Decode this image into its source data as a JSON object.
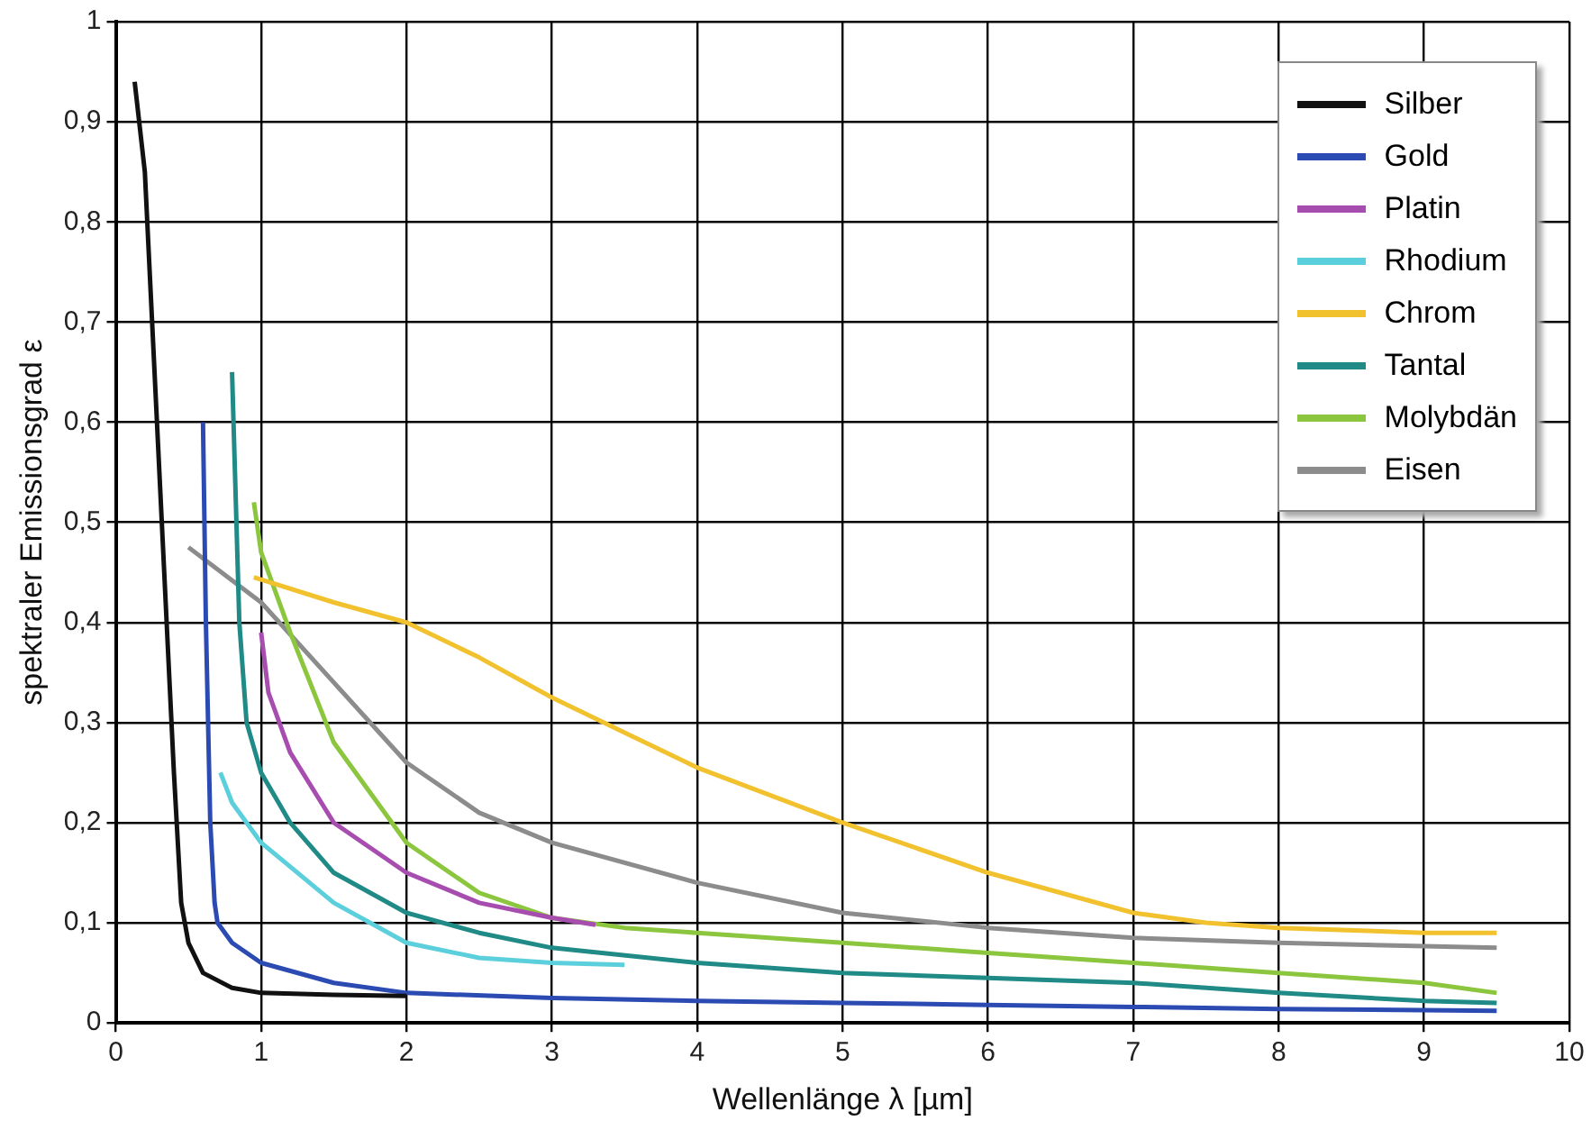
{
  "chart_data": {
    "type": "line",
    "xlabel": "Wellenlänge λ [µm]",
    "ylabel": "spektraler Emissionsgrad ε",
    "xlim": [
      0,
      10
    ],
    "ylim": [
      0,
      1
    ],
    "xticks": [
      0,
      1,
      2,
      3,
      4,
      5,
      6,
      7,
      8,
      9,
      10
    ],
    "yticks": [
      0,
      {
        "value": 0.1,
        "label": "0,1"
      },
      {
        "value": 0.2,
        "label": "0,2"
      },
      {
        "value": 0.3,
        "label": "0,3"
      },
      {
        "value": 0.4,
        "label": "0,4"
      },
      {
        "value": 0.5,
        "label": "0,5"
      },
      {
        "value": 0.6,
        "label": "0,6"
      },
      {
        "value": 0.7,
        "label": "0,7"
      },
      {
        "value": 0.8,
        "label": "0,8"
      },
      {
        "value": 0.9,
        "label": "0,9"
      },
      1
    ],
    "grid": true,
    "legend": "top right",
    "marker": "none",
    "line_style": "solid",
    "series": [
      {
        "name": "Silber",
        "color": "#111111",
        "x": [
          0.13,
          0.2,
          0.3,
          0.4,
          0.45,
          0.5,
          0.6,
          0.8,
          1,
          1.5,
          2
        ],
        "values": [
          0.94,
          0.85,
          0.55,
          0.25,
          0.12,
          0.08,
          0.05,
          0.035,
          0.03,
          0.028,
          0.027
        ]
      },
      {
        "name": "Gold",
        "color": "#2b4bb3",
        "x": [
          0.6,
          0.62,
          0.65,
          0.68,
          0.7,
          0.8,
          1,
          1.5,
          2,
          3,
          4,
          5,
          6,
          7,
          8,
          9.5
        ],
        "values": [
          0.6,
          0.4,
          0.2,
          0.12,
          0.1,
          0.08,
          0.06,
          0.04,
          0.03,
          0.025,
          0.022,
          0.02,
          0.018,
          0.016,
          0.014,
          0.012
        ]
      },
      {
        "name": "Platin",
        "color": "#a84db0",
        "x": [
          1,
          1.05,
          1.2,
          1.5,
          2,
          2.5,
          3,
          3.3
        ],
        "values": [
          0.39,
          0.33,
          0.27,
          0.2,
          0.15,
          0.12,
          0.105,
          0.098
        ]
      },
      {
        "name": "Rhodium",
        "color": "#5ccfdc",
        "x": [
          0.72,
          0.8,
          1,
          1.5,
          2,
          2.5,
          3,
          3.5
        ],
        "values": [
          0.25,
          0.22,
          0.18,
          0.12,
          0.08,
          0.065,
          0.06,
          0.058
        ]
      },
      {
        "name": "Chrom",
        "color": "#f2c12e",
        "x": [
          0.95,
          1.5,
          2,
          2.5,
          3,
          3.5,
          4,
          5,
          6,
          7,
          7.5,
          8,
          9,
          9.5
        ],
        "values": [
          0.445,
          0.42,
          0.4,
          0.365,
          0.325,
          0.29,
          0.255,
          0.2,
          0.15,
          0.11,
          0.1,
          0.095,
          0.09,
          0.09
        ]
      },
      {
        "name": "Tantal",
        "color": "#1f8a86",
        "x": [
          0.8,
          0.82,
          0.85,
          0.9,
          1,
          1.2,
          1.5,
          2,
          2.5,
          3,
          4,
          5,
          6,
          7,
          8,
          9,
          9.5
        ],
        "values": [
          0.65,
          0.55,
          0.4,
          0.3,
          0.25,
          0.2,
          0.15,
          0.11,
          0.09,
          0.075,
          0.06,
          0.05,
          0.045,
          0.04,
          0.03,
          0.022,
          0.02
        ]
      },
      {
        "name": "Molybdän",
        "color": "#8cc63f",
        "x": [
          0.95,
          1,
          1.2,
          1.5,
          2,
          2.5,
          3,
          3.5,
          4,
          5,
          6,
          7,
          8,
          9,
          9.5
        ],
        "values": [
          0.52,
          0.47,
          0.39,
          0.28,
          0.18,
          0.13,
          0.105,
          0.095,
          0.09,
          0.08,
          0.07,
          0.06,
          0.05,
          0.04,
          0.03
        ]
      },
      {
        "name": "Eisen",
        "color": "#8c8c8c",
        "x": [
          0.5,
          1,
          1.5,
          2,
          2.5,
          3,
          4,
          5,
          6,
          7,
          8,
          9.5
        ],
        "values": [
          0.475,
          0.42,
          0.34,
          0.26,
          0.21,
          0.18,
          0.14,
          0.11,
          0.095,
          0.085,
          0.08,
          0.075
        ]
      }
    ]
  }
}
